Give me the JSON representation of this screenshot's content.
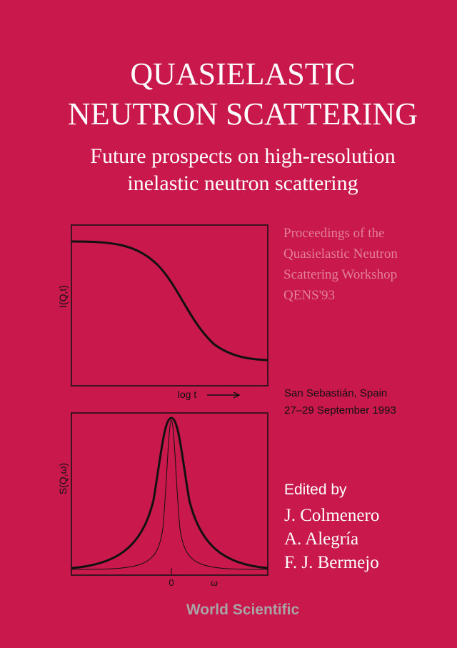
{
  "cover": {
    "title": [
      "QUASIELASTIC",
      "NEUTRON SCATTERING"
    ],
    "subtitle": [
      "Future prospects on high-resolution",
      "inelastic neutron scattering"
    ],
    "proceedings": [
      "Proceedings of the",
      "Quasielastic Neutron",
      "Scattering Workshop",
      "QENS'93"
    ],
    "plots": {
      "top": {
        "y_label": "I(Q,t)",
        "x_label": "log t"
      },
      "bottom": {
        "y_label": "S(Q,ω)",
        "x_zero": "0",
        "x_label": "ω"
      }
    },
    "venue": [
      "San Sebastián, Spain",
      "27–29 September 1993"
    ],
    "editors_heading": "Edited by",
    "editors": [
      "J. Colmenero",
      "A. Alegría",
      "F. J. Bermejo"
    ],
    "publisher": "World Scientific"
  }
}
